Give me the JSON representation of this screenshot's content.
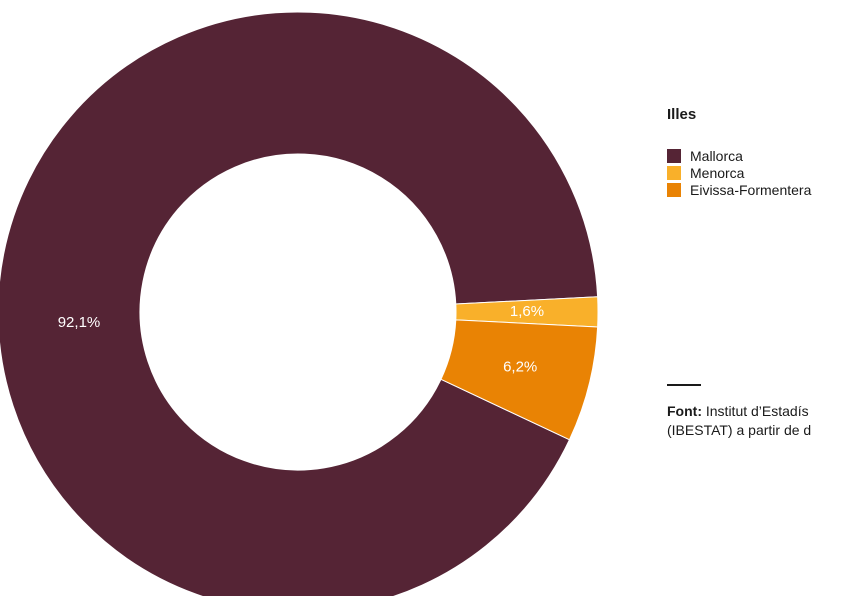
{
  "chart_data": {
    "type": "pie",
    "variant": "donut",
    "categories": [
      "Mallorca",
      "Menorca",
      "Eivissa-Formentera"
    ],
    "values": [
      92.1,
      1.6,
      6.2
    ],
    "labels": [
      "92,1%",
      "1,6%",
      "6,2%"
    ],
    "colors": [
      "#552435",
      "#f9b02a",
      "#e98304"
    ],
    "legend_title": "Illes",
    "legend_position": "right"
  },
  "source": {
    "label": "Font:",
    "line1": " Institut d’Estadís",
    "line2": "(IBESTAT) a partir de d"
  }
}
